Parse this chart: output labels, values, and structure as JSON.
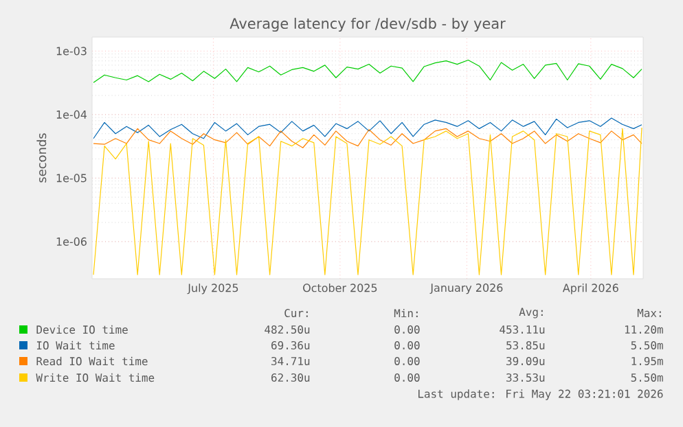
{
  "chart_data": {
    "type": "line",
    "title": "Average latency for /dev/sdb - by year",
    "ylabel": "seconds",
    "log": "y",
    "grid": true,
    "legend": "bottom",
    "xlim": [
      "2025-04-04",
      "2026-05-09"
    ],
    "xticks": [
      {
        "value": "2025-07-01",
        "label": "July 2025"
      },
      {
        "value": "2025-10-01",
        "label": "October 2025"
      },
      {
        "value": "2026-01-01",
        "label": "January 2026"
      },
      {
        "value": "2026-04-01",
        "label": "April 2026"
      }
    ],
    "ylim": [
      2.6e-07,
      0.00166
    ],
    "yticks": [
      {
        "value": 1e-06,
        "label": "1e-06"
      },
      {
        "value": 1e-05,
        "label": "1e-05"
      },
      {
        "value": 0.0001,
        "label": "1e-04"
      },
      {
        "value": 0.001,
        "label": "1e-03"
      }
    ],
    "x": [
      "2025-04-05",
      "2025-04-13",
      "2025-04-21",
      "2025-04-29",
      "2025-05-07",
      "2025-05-15",
      "2025-05-23",
      "2025-05-31",
      "2025-06-08",
      "2025-06-16",
      "2025-06-24",
      "2025-07-02",
      "2025-07-10",
      "2025-07-18",
      "2025-07-26",
      "2025-08-03",
      "2025-08-11",
      "2025-08-19",
      "2025-08-27",
      "2025-09-04",
      "2025-09-12",
      "2025-09-20",
      "2025-09-28",
      "2025-10-06",
      "2025-10-14",
      "2025-10-22",
      "2025-10-30",
      "2025-11-07",
      "2025-11-15",
      "2025-11-23",
      "2025-12-01",
      "2025-12-09",
      "2025-12-17",
      "2025-12-25",
      "2026-01-02",
      "2026-01-10",
      "2026-01-18",
      "2026-01-26",
      "2026-02-03",
      "2026-02-11",
      "2026-02-19",
      "2026-02-27",
      "2026-03-07",
      "2026-03-15",
      "2026-03-23",
      "2026-03-31",
      "2026-04-08",
      "2026-04-16",
      "2026-04-24",
      "2026-05-02",
      "2026-05-08"
    ],
    "series": [
      {
        "name": "Device IO time",
        "color": "#00cc00",
        "values": [
          0.00032,
          0.00042,
          0.00038,
          0.00035,
          0.00041,
          0.00033,
          0.00043,
          0.00036,
          0.00045,
          0.00034,
          0.00048,
          0.00037,
          0.00052,
          0.00033,
          0.00055,
          0.00047,
          0.00058,
          0.00042,
          0.00051,
          0.00055,
          0.00048,
          0.0006,
          0.00038,
          0.00056,
          0.00052,
          0.00062,
          0.00045,
          0.00058,
          0.00054,
          0.00033,
          0.00057,
          0.00065,
          0.0007,
          0.00062,
          0.00072,
          0.00058,
          0.00035,
          0.00066,
          0.0005,
          0.00062,
          0.00037,
          0.0006,
          0.00064,
          0.00035,
          0.00063,
          0.00058,
          0.00036,
          0.00062,
          0.00053,
          0.00038,
          0.00052
        ]
      },
      {
        "name": "IO Wait time",
        "color": "#0066b3",
        "values": [
          4.2e-05,
          7.5e-05,
          5e-05,
          6.5e-05,
          5.2e-05,
          6.8e-05,
          4.5e-05,
          5.8e-05,
          7e-05,
          5e-05,
          4.2e-05,
          7.5e-05,
          5.5e-05,
          7.2e-05,
          4.8e-05,
          6.5e-05,
          7e-05,
          5.2e-05,
          7.8e-05,
          5.5e-05,
          6.8e-05,
          4.5e-05,
          7.2e-05,
          6e-05,
          7.8e-05,
          5.5e-05,
          8e-05,
          5e-05,
          7.5e-05,
          4.5e-05,
          7e-05,
          8.2e-05,
          7.5e-05,
          6.5e-05,
          8e-05,
          6e-05,
          7.5e-05,
          5.5e-05,
          8.2e-05,
          6.5e-05,
          7.8e-05,
          4.8e-05,
          8.5e-05,
          6.2e-05,
          7.5e-05,
          8e-05,
          6.5e-05,
          8.8e-05,
          7e-05,
          6e-05,
          6.9e-05
        ]
      },
      {
        "name": "Read IO Wait time",
        "color": "#ff8000",
        "values": [
          3.5e-05,
          3.4e-05,
          4.2e-05,
          3.5e-05,
          6e-05,
          4e-05,
          3.5e-05,
          5.5e-05,
          4.2e-05,
          3.4e-05,
          5e-05,
          4e-05,
          3.6e-05,
          5.2e-05,
          3.4e-05,
          4.5e-05,
          3.2e-05,
          5.5e-05,
          3.8e-05,
          3e-05,
          4.8e-05,
          3.3e-05,
          5.5e-05,
          3.8e-05,
          3.2e-05,
          5.8e-05,
          4e-05,
          3.3e-05,
          5e-05,
          3.5e-05,
          4e-05,
          5.5e-05,
          6e-05,
          4.5e-05,
          5.5e-05,
          4.2e-05,
          3.8e-05,
          5e-05,
          3.5e-05,
          4.2e-05,
          5.5e-05,
          3.5e-05,
          4.8e-05,
          3.8e-05,
          5e-05,
          4.2e-05,
          3.6e-05,
          5.5e-05,
          4e-05,
          4.8e-05,
          3.5e-05
        ]
      },
      {
        "name": "Write IO Wait time",
        "color": "#ffcc00",
        "values": [
          3e-07,
          3.2e-05,
          2e-05,
          3.5e-05,
          3e-07,
          3.8e-05,
          3e-07,
          3.5e-05,
          3e-07,
          4.2e-05,
          3.3e-05,
          3e-07,
          4e-05,
          3e-07,
          3.5e-05,
          4.5e-05,
          3e-07,
          3.8e-05,
          3.2e-05,
          4.2e-05,
          3.6e-05,
          3e-07,
          4.5e-05,
          3.5e-05,
          3e-07,
          4e-05,
          3.4e-05,
          4.5e-05,
          3.2e-05,
          3e-07,
          4e-05,
          4.5e-05,
          5.5e-05,
          4.2e-05,
          5e-05,
          3e-07,
          4.8e-05,
          3e-07,
          4.5e-05,
          5.5e-05,
          4e-05,
          3e-07,
          5e-05,
          4.5e-05,
          3e-07,
          5.5e-05,
          4.8e-05,
          3e-07,
          6e-05,
          3e-07,
          6.2e-05
        ]
      }
    ],
    "annotations": [
      "Cur:",
      "Min:",
      "Avg:",
      "Max:",
      "482.50u",
      "0.00",
      "453.11u",
      "11.20m",
      "69.36u",
      "0.00",
      "53.85u",
      "5.50m",
      "34.71u",
      "0.00",
      "39.09u",
      "1.95m",
      "62.30u",
      "0.00",
      "33.53u",
      "5.50m",
      "Last update: Fri May 22 03:21:01 2026"
    ]
  }
}
